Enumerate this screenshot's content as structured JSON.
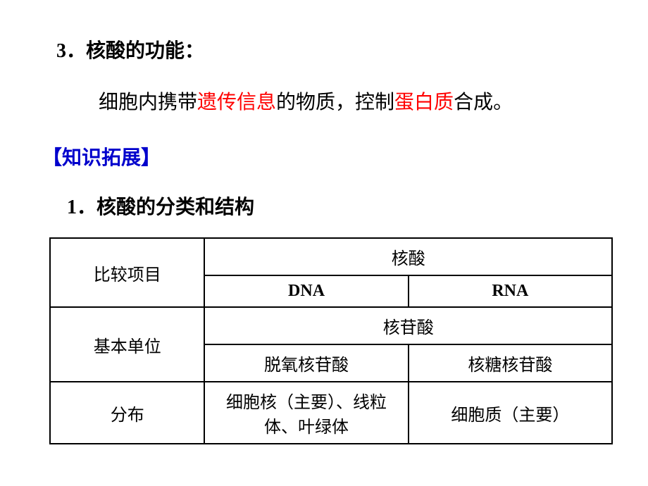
{
  "heading1": "3．核酸的功能：",
  "bodyText": {
    "part1": "细胞内携带",
    "highlight1": "遗传信息",
    "part2": "的物质，控制",
    "highlight2": "蛋白质",
    "part3": "合成。"
  },
  "sectionHeader": "【知识拓展】",
  "heading2": "1．核酸的分类和结构",
  "table": {
    "row1": {
      "label": "比较项目",
      "merged": "核酸"
    },
    "row2": {
      "col1": "DNA",
      "col2": "RNA"
    },
    "row3": {
      "label": "基本单位",
      "merged": "核苷酸"
    },
    "row4": {
      "col1": "脱氧核苷酸",
      "col2": "核糖核苷酸"
    },
    "row5": {
      "label": "分布",
      "col1": "细胞核（主要）、线粒体、叶绿体",
      "col2": "细胞质（主要）"
    }
  },
  "colors": {
    "highlight": "#ff0000",
    "sectionHeader": "#0000cc",
    "text": "#000000",
    "border": "#000000",
    "background": "#ffffff"
  }
}
